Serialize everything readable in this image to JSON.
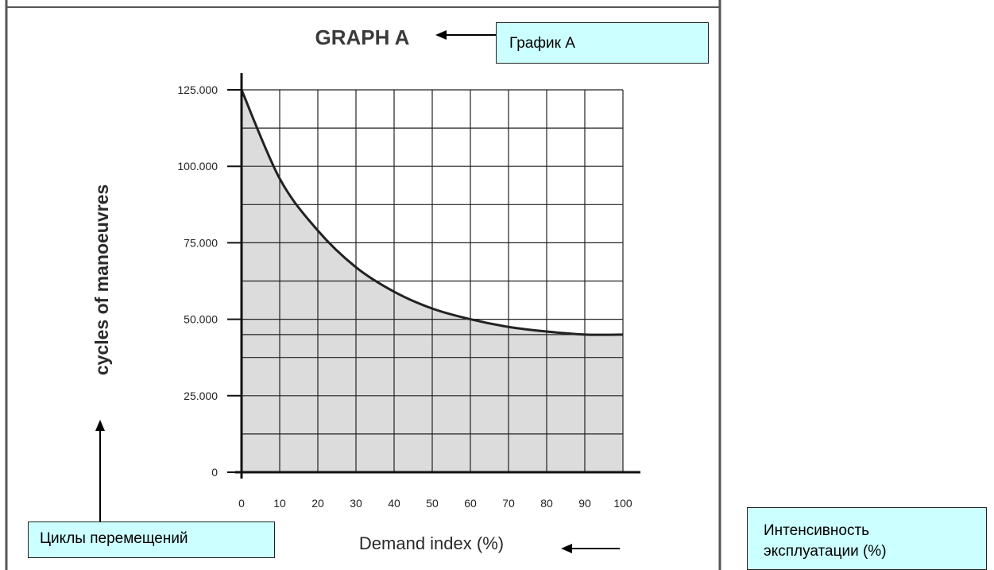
{
  "annotations": {
    "title_ru": "График A",
    "ylabel_ru": "Циклы перемещений",
    "xlabel_ru_line1": "Интенсивность",
    "xlabel_ru_line2": "эксплуатации (%)"
  },
  "colors": {
    "fill": "#dcdcdc",
    "grid": "#222222",
    "curve": "#222222",
    "callout_bg": "#ccffff"
  },
  "chart_data": {
    "type": "area",
    "title": "GRAPH A",
    "xlabel": "Demand index (%)",
    "ylabel": "cycles of manoeuvres",
    "xlim": [
      0,
      100
    ],
    "ylim": [
      0,
      125000
    ],
    "x_ticks": [
      "0",
      "10",
      "20",
      "30",
      "40",
      "50",
      "60",
      "70",
      "80",
      "90",
      "100"
    ],
    "y_ticks": [
      {
        "value": 0,
        "label": "0"
      },
      {
        "value": 25000,
        "label": "25.000"
      },
      {
        "value": 50000,
        "label": "50.000"
      },
      {
        "value": 75000,
        "label": "75.000"
      },
      {
        "value": 100000,
        "label": "100.000"
      },
      {
        "value": 125000,
        "label": "125.000"
      }
    ],
    "grid": true,
    "series": [
      {
        "x": [
          0,
          10,
          20,
          30,
          40,
          50,
          60,
          70,
          80,
          90,
          100
        ],
        "y": [
          125000,
          96000,
          79000,
          67000,
          59000,
          53500,
          50000,
          47500,
          46000,
          45000,
          45000
        ]
      }
    ]
  }
}
